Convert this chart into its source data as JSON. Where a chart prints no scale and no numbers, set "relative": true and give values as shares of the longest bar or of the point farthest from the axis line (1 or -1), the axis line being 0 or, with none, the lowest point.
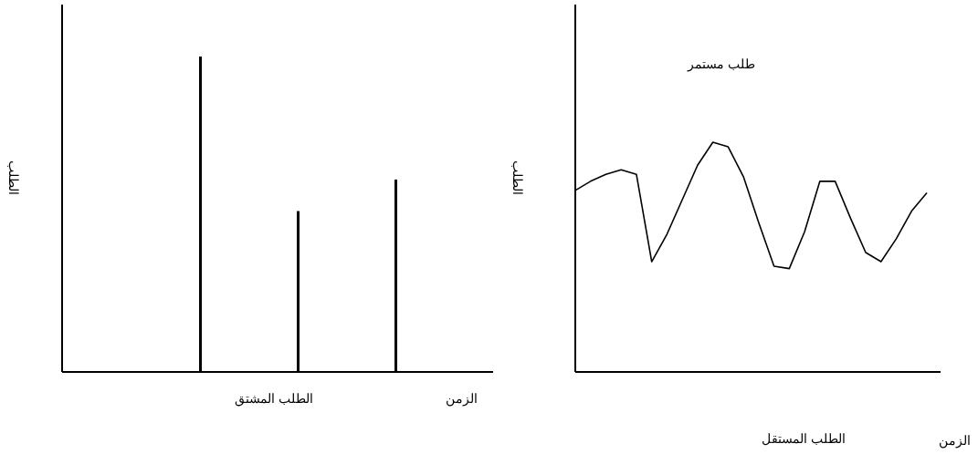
{
  "chart_data": [
    {
      "type": "bar",
      "title": "الطلب المشتق",
      "xlabel": "الزمن",
      "ylabel": "الطلب",
      "relative": true,
      "color": "#000000",
      "categories": [
        null,
        null,
        null
      ],
      "values": [
        1,
        0.51,
        0.61
      ]
    },
    {
      "type": "line",
      "title": "الطلب المستقل",
      "xlabel": "الزمن",
      "ylabel": "الطلب",
      "relative": true,
      "color": "#000000",
      "annotations": [
        "طلب مستمر"
      ],
      "categories": [
        null,
        null,
        null,
        null,
        null,
        null,
        null,
        null,
        null,
        null,
        null,
        null,
        null,
        null,
        null,
        null,
        null,
        null,
        null,
        null,
        null,
        null,
        null,
        null
      ],
      "values": [
        0.79,
        0.83,
        0.86,
        0.88,
        0.86,
        0.48,
        0.6,
        0.75,
        0.9,
        1,
        0.98,
        0.85,
        0.65,
        0.46,
        0.45,
        0.61,
        0.83,
        0.83,
        0.67,
        0.52,
        0.48,
        0.58,
        0.7,
        0.78
      ]
    }
  ]
}
